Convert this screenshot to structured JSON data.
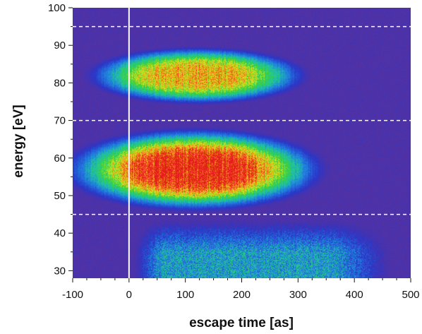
{
  "chart_data": {
    "type": "heatmap",
    "title": "",
    "xlabel": "escape time [as]",
    "ylabel": "energy [eV]",
    "xlim": [
      -100,
      500
    ],
    "ylim": [
      28,
      100
    ],
    "x_ticks": [
      -100,
      0,
      100,
      200,
      300,
      400,
      500
    ],
    "y_ticks": [
      30,
      40,
      50,
      60,
      70,
      80,
      90,
      100
    ],
    "x_tick_labels": [
      "-100",
      "0",
      "100",
      "200",
      "300",
      "400",
      "500"
    ],
    "y_tick_labels": [
      "30",
      "40",
      "50",
      "60",
      "70",
      "80",
      "90",
      "100"
    ],
    "colormap": [
      "#6a2f8f",
      "#2a36c8",
      "#1f7fe0",
      "#20c4a0",
      "#36d040",
      "#d8e81c",
      "#f07a18",
      "#e41a1c"
    ],
    "background_color": "#5e3290",
    "features": [
      {
        "name": "upper band",
        "center_time": 120,
        "center_energy": 82,
        "time_halfwidth": 180,
        "energy_halfwidth": 7,
        "peak": 0.8
      },
      {
        "name": "lower band",
        "center_time": 115,
        "center_energy": 57,
        "time_halfwidth": 210,
        "energy_halfwidth": 10,
        "peak": 1.0
      },
      {
        "name": "low energy tail",
        "time_start": 0,
        "time_end": 420,
        "energy_start": 28,
        "energy_end": 45,
        "peak": 0.35
      }
    ],
    "reference_lines": {
      "vertical_solid_at_time": 0,
      "horizontal_dashed_at_energy": [
        95,
        70,
        45
      ],
      "line_color": "#ffffff"
    }
  }
}
